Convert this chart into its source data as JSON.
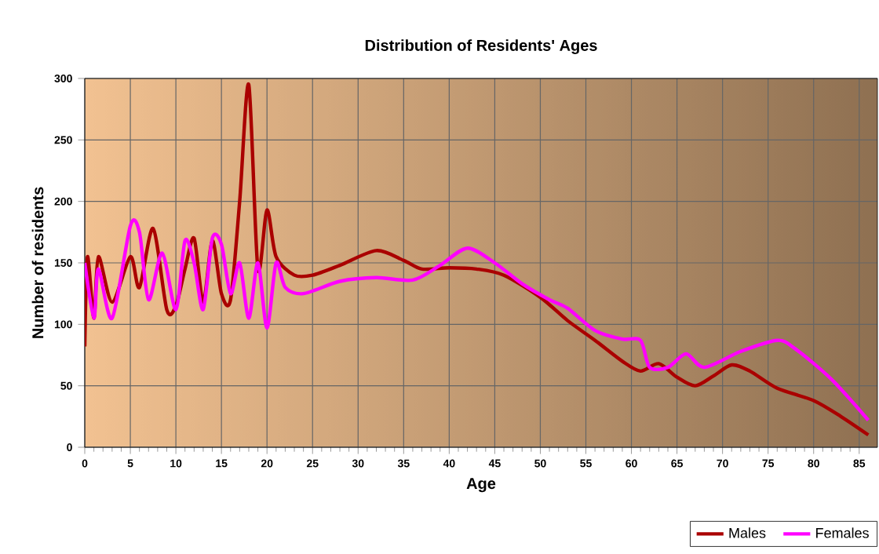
{
  "chart_data": {
    "type": "line",
    "title": "Distribution of Residents' Ages",
    "xlabel": "Age",
    "ylabel": "Number of residents",
    "xlim": [
      0,
      87
    ],
    "xticks": [
      0,
      5,
      10,
      15,
      20,
      25,
      30,
      35,
      40,
      45,
      50,
      55,
      60,
      65,
      70,
      75,
      80,
      85
    ],
    "ylim": [
      0,
      300
    ],
    "yticks": [
      0,
      50,
      100,
      150,
      200,
      250,
      300
    ],
    "grid": true,
    "legend": "bottom right",
    "series": [
      {
        "name": "Males",
        "color": "#aa0000",
        "x": [
          0,
          0.3,
          1,
          1.5,
          3,
          5,
          6,
          7.5,
          9,
          10,
          11,
          12,
          13,
          14,
          15,
          16,
          17,
          18,
          19,
          20,
          21,
          23,
          25,
          28,
          32,
          35,
          37,
          40,
          43,
          46,
          50,
          53,
          56,
          59,
          61,
          63,
          65,
          67,
          69,
          71,
          73,
          76,
          80,
          83,
          86
        ],
        "values": [
          82,
          155,
          105,
          155,
          118,
          155,
          130,
          178,
          112,
          115,
          145,
          170,
          118,
          168,
          125,
          120,
          200,
          295,
          145,
          193,
          155,
          140,
          140,
          148,
          160,
          152,
          145,
          146,
          145,
          140,
          122,
          103,
          87,
          70,
          62,
          68,
          57,
          50,
          58,
          67,
          62,
          48,
          38,
          25,
          10
        ]
      },
      {
        "name": "Females",
        "color": "#ff00ff",
        "x": [
          0,
          1,
          1.5,
          3,
          5,
          6,
          7,
          8.5,
          10,
          11,
          12,
          13,
          14,
          15,
          16,
          17,
          18,
          19,
          20,
          21,
          22,
          24,
          28,
          32,
          36,
          39,
          42,
          45,
          48,
          51,
          53,
          56,
          59,
          61,
          62,
          64,
          66,
          68,
          72,
          76,
          78,
          82,
          86
        ],
        "values": [
          150,
          105,
          145,
          105,
          180,
          175,
          120,
          158,
          112,
          168,
          150,
          112,
          170,
          165,
          125,
          150,
          105,
          150,
          97,
          150,
          130,
          125,
          135,
          138,
          136,
          148,
          162,
          150,
          133,
          120,
          113,
          95,
          88,
          87,
          65,
          65,
          76,
          65,
          78,
          87,
          80,
          55,
          22
        ]
      }
    ]
  }
}
